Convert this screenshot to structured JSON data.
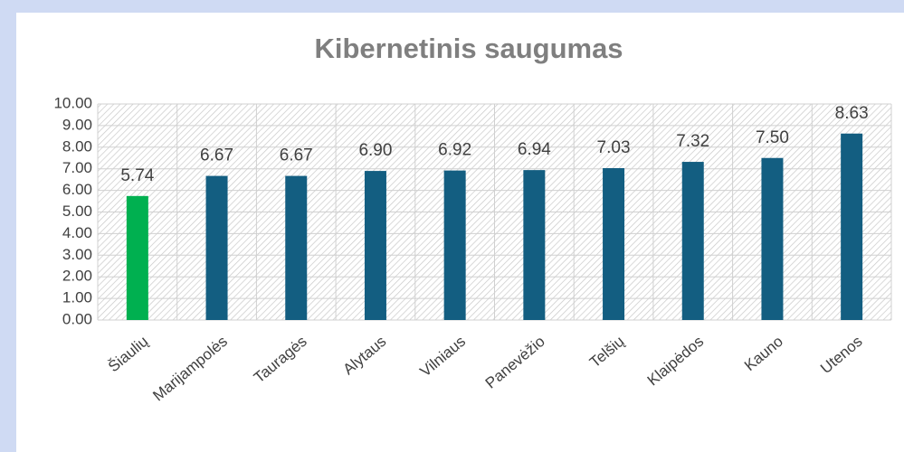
{
  "chart_data": {
    "type": "bar",
    "title": "Kibernetinis saugumas",
    "categories": [
      "Šiaulių",
      "Marijampolės",
      "Tauragės",
      "Alytaus",
      "Vilniaus",
      "Panevėžio",
      "Telšių",
      "Klaipėdos",
      "Kauno",
      "Utenos"
    ],
    "values": [
      5.74,
      6.67,
      6.67,
      6.9,
      6.92,
      6.94,
      7.03,
      7.32,
      7.5,
      8.63
    ],
    "value_labels": [
      "5.74",
      "6.67",
      "6.67",
      "6.90",
      "6.92",
      "6.94",
      "7.03",
      "7.32",
      "7.50",
      "8.63"
    ],
    "colors": [
      "#00b050",
      "#135e81",
      "#135e81",
      "#135e81",
      "#135e81",
      "#135e81",
      "#135e81",
      "#135e81",
      "#135e81",
      "#135e81"
    ],
    "ylim": [
      0,
      10
    ],
    "yticks": [
      {
        "value": 0,
        "label": "0.00"
      },
      {
        "value": 1,
        "label": "1.00"
      },
      {
        "value": 2,
        "label": "2.00"
      },
      {
        "value": 3,
        "label": "3.00"
      },
      {
        "value": 4,
        "label": "4.00"
      },
      {
        "value": 5,
        "label": "5.00"
      },
      {
        "value": 6,
        "label": "6.00"
      },
      {
        "value": 7,
        "label": "7.00"
      },
      {
        "value": 8,
        "label": "8.00"
      },
      {
        "value": 9,
        "label": "9.00"
      },
      {
        "value": 10,
        "label": "10.00"
      }
    ],
    "grid": true
  }
}
